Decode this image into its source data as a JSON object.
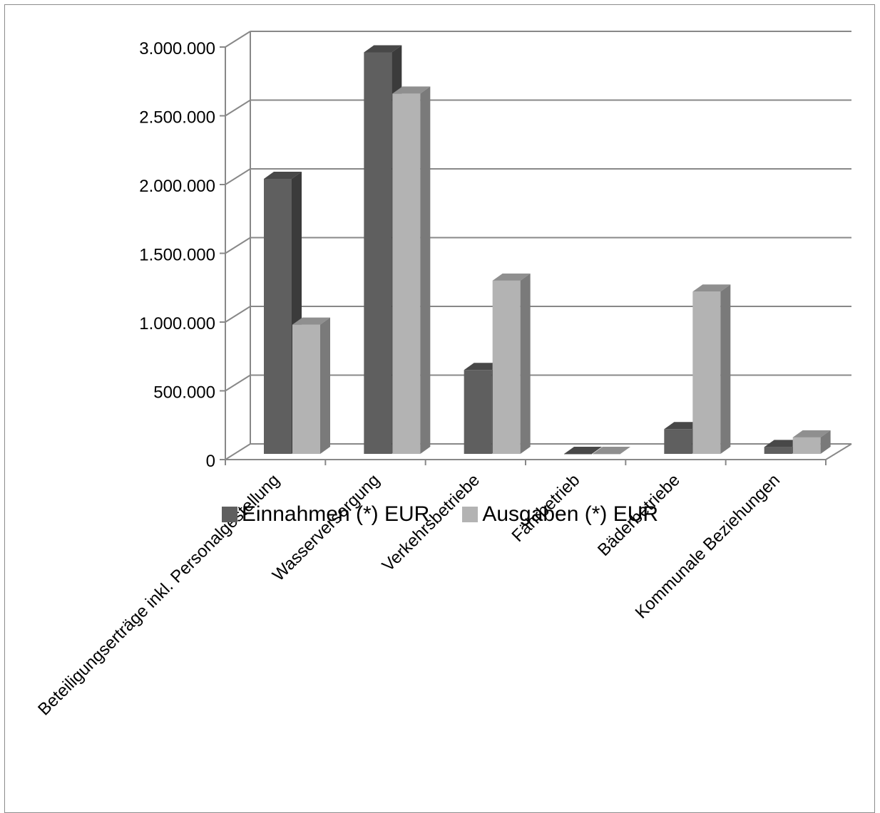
{
  "chart_data": {
    "type": "bar",
    "title": "",
    "xlabel": "",
    "ylabel": "",
    "ylim": [
      0,
      3000000
    ],
    "y_ticks": [
      0,
      500000,
      1000000,
      1500000,
      2000000,
      2500000,
      3000000
    ],
    "y_tick_labels": [
      "0",
      "500.000",
      "1.000.000",
      "1.500.000",
      "2.000.000",
      "2.500.000",
      "3.000.000"
    ],
    "categories": [
      "Beteiligungserträge inkl. Personalgestellung",
      "Wasserversorgung",
      "Verkehrsbetriebe",
      "Fährbetrieb",
      "Bäderbetriebe",
      "Kommunale Beziehungen"
    ],
    "series": [
      {
        "name": "Einnahmen (*) EUR",
        "values": [
          2000000,
          2920000,
          610000,
          0,
          180000,
          50000
        ],
        "color": "#5f5f5f",
        "top_color": "#484848",
        "side_color": "#3b3b3b"
      },
      {
        "name": "Ausgaben (*) EUR",
        "values": [
          940000,
          2620000,
          1260000,
          0,
          1180000,
          120000
        ],
        "color": "#b3b3b3",
        "top_color": "#8f8f8f",
        "side_color": "#7a7a7a"
      }
    ],
    "grid": true,
    "legend_position": "bottom",
    "style": "3d-clustered-column"
  }
}
